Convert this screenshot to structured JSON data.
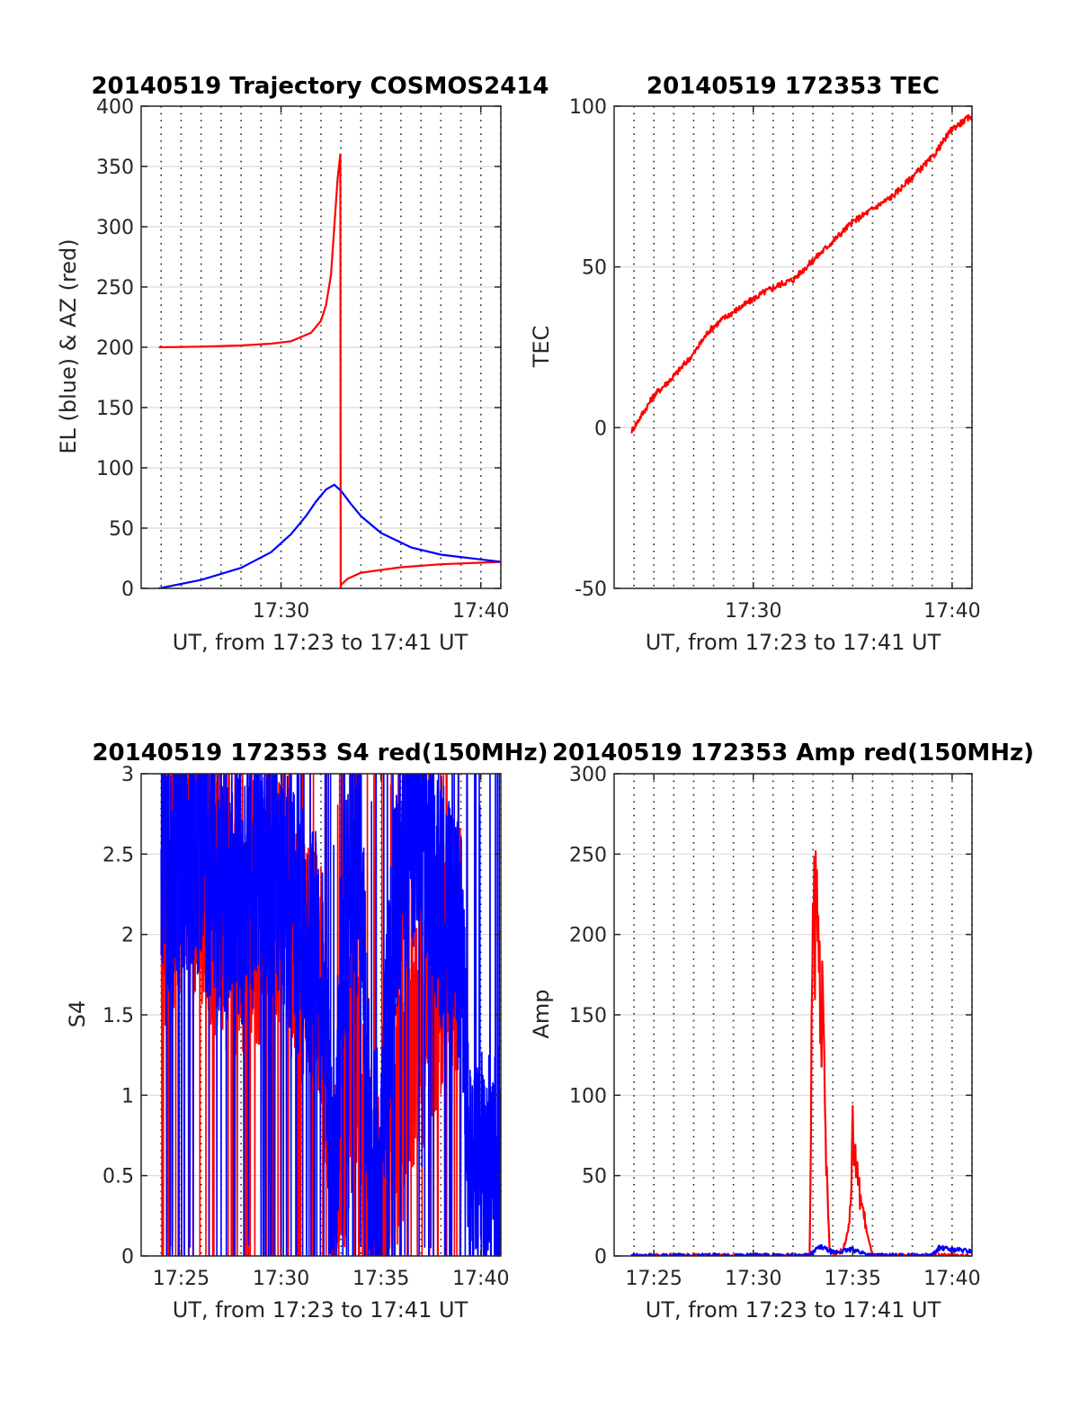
{
  "xlabel": "UT, from 17:23 to 17:41 UT",
  "colors": {
    "el": "#0000ff",
    "az": "#ff0000",
    "tec": "#ff0000",
    "red": "#ff0000",
    "blue": "#0000ff",
    "grid": "#d9d9d9"
  },
  "chart_data": [
    {
      "type": "line",
      "title": "20140519 Trajectory COSMOS2414",
      "xlabel": "UT, from 17:23 to 17:41 UT",
      "ylabel": "EL (blue) & AZ (red)",
      "xlim": [
        "17:23",
        "17:41"
      ],
      "ylim": [
        0,
        400
      ],
      "yticks": [
        0,
        50,
        100,
        150,
        200,
        250,
        300,
        350,
        400
      ],
      "xticks": [
        "17:30",
        "17:40"
      ],
      "grid": true,
      "series": [
        {
          "color": "#ff0000",
          "x": [
            "17:23:53",
            "17:26:00",
            "17:28:00",
            "17:29:30",
            "17:30:30",
            "17:31:30",
            "17:32:00",
            "17:32:15",
            "17:32:30",
            "17:32:40",
            "17:32:50",
            "17:32:58",
            "17:32:59",
            "17:33:00",
            "17:33:20",
            "17:34:00",
            "17:36:00",
            "17:38:00",
            "17:41:00"
          ],
          "y": [
            200,
            200.5,
            201.5,
            203,
            205,
            212,
            222,
            235,
            260,
            300,
            340,
            360,
            0,
            3,
            8,
            13,
            17.5,
            20,
            22
          ]
        },
        {
          "color": "#0000ff",
          "x": [
            "17:23:53",
            "17:26:00",
            "17:28:00",
            "17:29:30",
            "17:30:30",
            "17:31:15",
            "17:31:45",
            "17:32:15",
            "17:32:40",
            "17:33:00",
            "17:33:30",
            "17:34:00",
            "17:35:00",
            "17:36:30",
            "17:38:00",
            "17:40:00",
            "17:41:00"
          ],
          "y": [
            0,
            7,
            17,
            30,
            45,
            60,
            72,
            82,
            86,
            81,
            70,
            60,
            46,
            34,
            28,
            24,
            22
          ]
        }
      ]
    },
    {
      "type": "line",
      "title": "20140519 172353 TEC",
      "xlabel": "UT, from 17:23 to 17:41 UT",
      "ylabel": "TEC",
      "xlim": [
        "17:23",
        "17:41"
      ],
      "ylim": [
        -50,
        100
      ],
      "yticks": [
        -50,
        0,
        50,
        100
      ],
      "xticks": [
        "17:30",
        "17:40"
      ],
      "grid": true,
      "series": [
        {
          "color": "#ff0000",
          "x": [
            "17:23:53",
            "17:25:00",
            "17:26:00",
            "17:27:00",
            "17:27:45",
            "17:28:30",
            "17:29:30",
            "17:30:30",
            "17:31:30",
            "17:32:00",
            "17:33:00",
            "17:34:00",
            "17:35:00",
            "17:36:00",
            "17:37:00",
            "17:38:00",
            "17:39:00",
            "17:40:00",
            "17:41:00"
          ],
          "y": [
            -1,
            10,
            16,
            23,
            30,
            34,
            38,
            42,
            45,
            46,
            52,
            58,
            64,
            68,
            72,
            78,
            84,
            93,
            97
          ]
        }
      ]
    },
    {
      "type": "line",
      "title": "20140519 172353 S4 red(150MHz)",
      "xlabel": "UT, from 17:23 to 17:41 UT",
      "ylabel": "S4",
      "xlim": [
        "17:23",
        "17:41"
      ],
      "ylim": [
        0,
        3
      ],
      "yticks": [
        0,
        0.5,
        1,
        1.5,
        2,
        2.5,
        3
      ],
      "xticks": [
        "17:25",
        "17:30",
        "17:35",
        "17:40"
      ],
      "grid": true,
      "series": [
        {
          "color": "#ff0000",
          "x": [
            "17:24:00",
            "17:25:00",
            "17:26:00",
            "17:27:00",
            "17:28:00",
            "17:29:00",
            "17:30:00",
            "17:31:00",
            "17:32:00",
            "17:32:40",
            "17:33:00",
            "17:33:30",
            "17:34:00",
            "17:34:30",
            "17:35:00",
            "17:35:30",
            "17:36:00",
            "17:36:30",
            "17:37:00",
            "17:37:30",
            "17:38:00",
            "17:38:30",
            "17:39:00"
          ],
          "y": [
            2.1,
            2.4,
            2.3,
            2.1,
            2.0,
            2.1,
            2.2,
            1.8,
            1.7,
            0.3,
            0.5,
            1.2,
            1.0,
            0.3,
            0.2,
            0.7,
            0.9,
            1.3,
            1.4,
            1.6,
            1.8,
            1.9,
            2.0
          ]
        },
        {
          "color": "#0000ff",
          "x": [
            "17:24:00",
            "17:25:00",
            "17:26:00",
            "17:27:00",
            "17:28:00",
            "17:29:00",
            "17:30:00",
            "17:31:00",
            "17:32:00",
            "17:32:40",
            "17:33:00",
            "17:33:30",
            "17:34:00",
            "17:34:30",
            "17:35:00",
            "17:35:30",
            "17:36:00",
            "17:36:30",
            "17:37:00",
            "17:37:30",
            "17:38:00",
            "17:38:30",
            "17:39:00",
            "17:39:30",
            "17:40:00",
            "17:41:00"
          ],
          "y": [
            2.3,
            2.5,
            2.4,
            2.3,
            2.2,
            2.4,
            2.3,
            2.0,
            1.8,
            0.2,
            1.7,
            2.5,
            2.3,
            0.5,
            0.5,
            1.8,
            2.5,
            2.6,
            2.8,
            2.5,
            2.2,
            2.0,
            1.9,
            0.4,
            0.5,
            0.5
          ]
        }
      ]
    },
    {
      "type": "line",
      "title": "20140519 172353 Amp red(150MHz)",
      "xlabel": "UT, from 17:23 to 17:41 UT",
      "ylabel": "Amp",
      "xlim": [
        "17:23",
        "17:41"
      ],
      "ylim": [
        0,
        300
      ],
      "yticks": [
        0,
        50,
        100,
        150,
        200,
        250,
        300
      ],
      "xticks": [
        "17:25",
        "17:30",
        "17:35",
        "17:40"
      ],
      "grid": true,
      "series": [
        {
          "color": "#ff0000",
          "x": [
            "17:23:53",
            "17:32:50",
            "17:33:00",
            "17:33:10",
            "17:33:20",
            "17:33:30",
            "17:33:40",
            "17:33:50",
            "17:34:00",
            "17:34:30",
            "17:34:50",
            "17:35:00",
            "17:35:10",
            "17:35:20",
            "17:35:30",
            "17:35:40",
            "17:35:50",
            "17:36:00",
            "17:41:00"
          ],
          "y": [
            0,
            0,
            200,
            220,
            180,
            140,
            60,
            5,
            2,
            3,
            20,
            75,
            55,
            40,
            30,
            18,
            8,
            0,
            0
          ]
        },
        {
          "color": "#0000ff",
          "x": [
            "17:23:53",
            "17:32:50",
            "17:33:20",
            "17:34:00",
            "17:35:00",
            "17:35:30",
            "17:36:00",
            "17:39:00",
            "17:39:20",
            "17:40:00",
            "17:41:00"
          ],
          "y": [
            0,
            0,
            6,
            2,
            4,
            2,
            0,
            0,
            5,
            4,
            3
          ]
        }
      ]
    }
  ]
}
